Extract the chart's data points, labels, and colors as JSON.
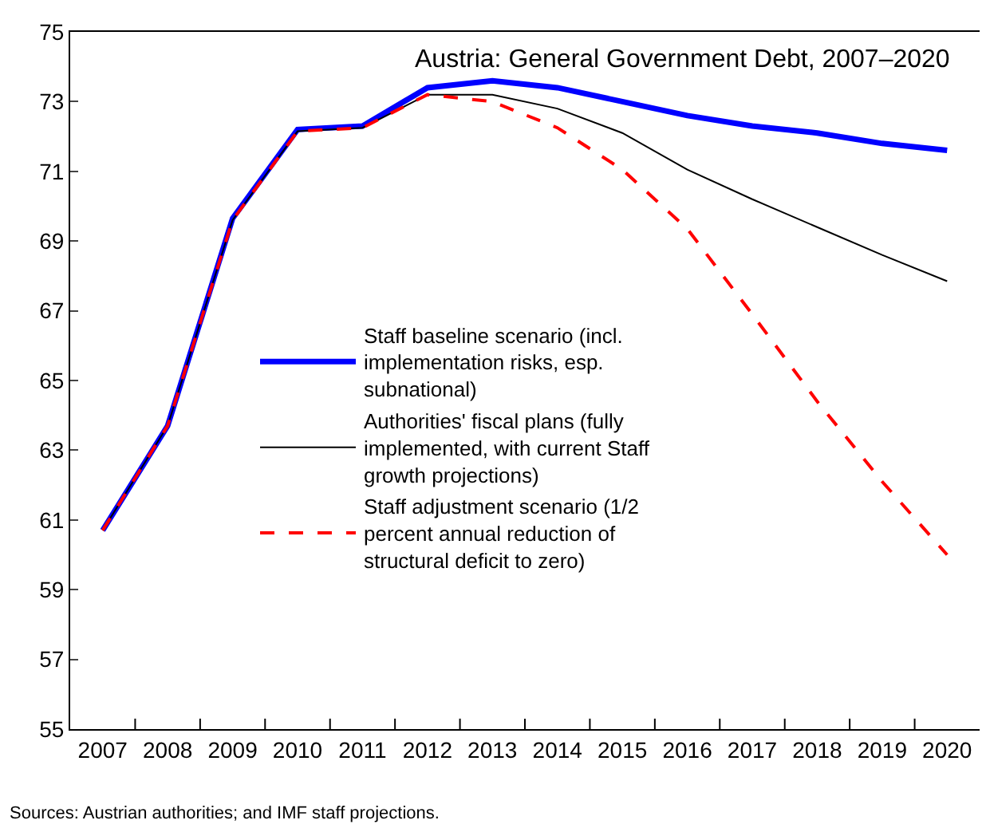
{
  "chart_data": {
    "type": "line",
    "title": "Austria: General Government Debt, 2007–2020",
    "categories": [
      "2007",
      "2008",
      "2009",
      "2010",
      "2011",
      "2012",
      "2013",
      "2014",
      "2015",
      "2016",
      "2017",
      "2018",
      "2019",
      "2020"
    ],
    "series": [
      {
        "name": "Staff baseline scenario (incl. implementation risks, esp. subnational)",
        "color": "#0000ff",
        "line_style": "solid",
        "values": [
          60.7,
          63.7,
          69.65,
          72.2,
          72.3,
          73.4,
          73.6,
          73.4,
          73.0,
          72.6,
          72.3,
          72.1,
          71.8,
          71.6
        ]
      },
      {
        "name": "Authorities' fiscal plans (fully implemented, with current Staff growth projections)",
        "color": "#000000",
        "line_style": "solid",
        "values": [
          60.7,
          63.7,
          69.6,
          72.15,
          72.25,
          73.2,
          73.2,
          72.8,
          72.1,
          71.05,
          70.2,
          69.4,
          68.6,
          67.85
        ]
      },
      {
        "name": "Staff adjustment scenario (1/2 percent annual reduction of structural deficit to zero)",
        "color": "#ff0000",
        "line_style": "dashed",
        "values": [
          60.7,
          63.7,
          69.6,
          72.15,
          72.25,
          73.2,
          73.0,
          72.25,
          71.05,
          69.35,
          66.9,
          64.4,
          62.1,
          60.0
        ]
      }
    ],
    "ylim": [
      55,
      75
    ],
    "yticks": [
      55,
      57,
      59,
      61,
      63,
      65,
      67,
      69,
      71,
      73,
      75
    ],
    "legend": "center",
    "marker": "none",
    "annotations": [
      "Sources: Austrian authorities; and IMF staff projections."
    ]
  }
}
